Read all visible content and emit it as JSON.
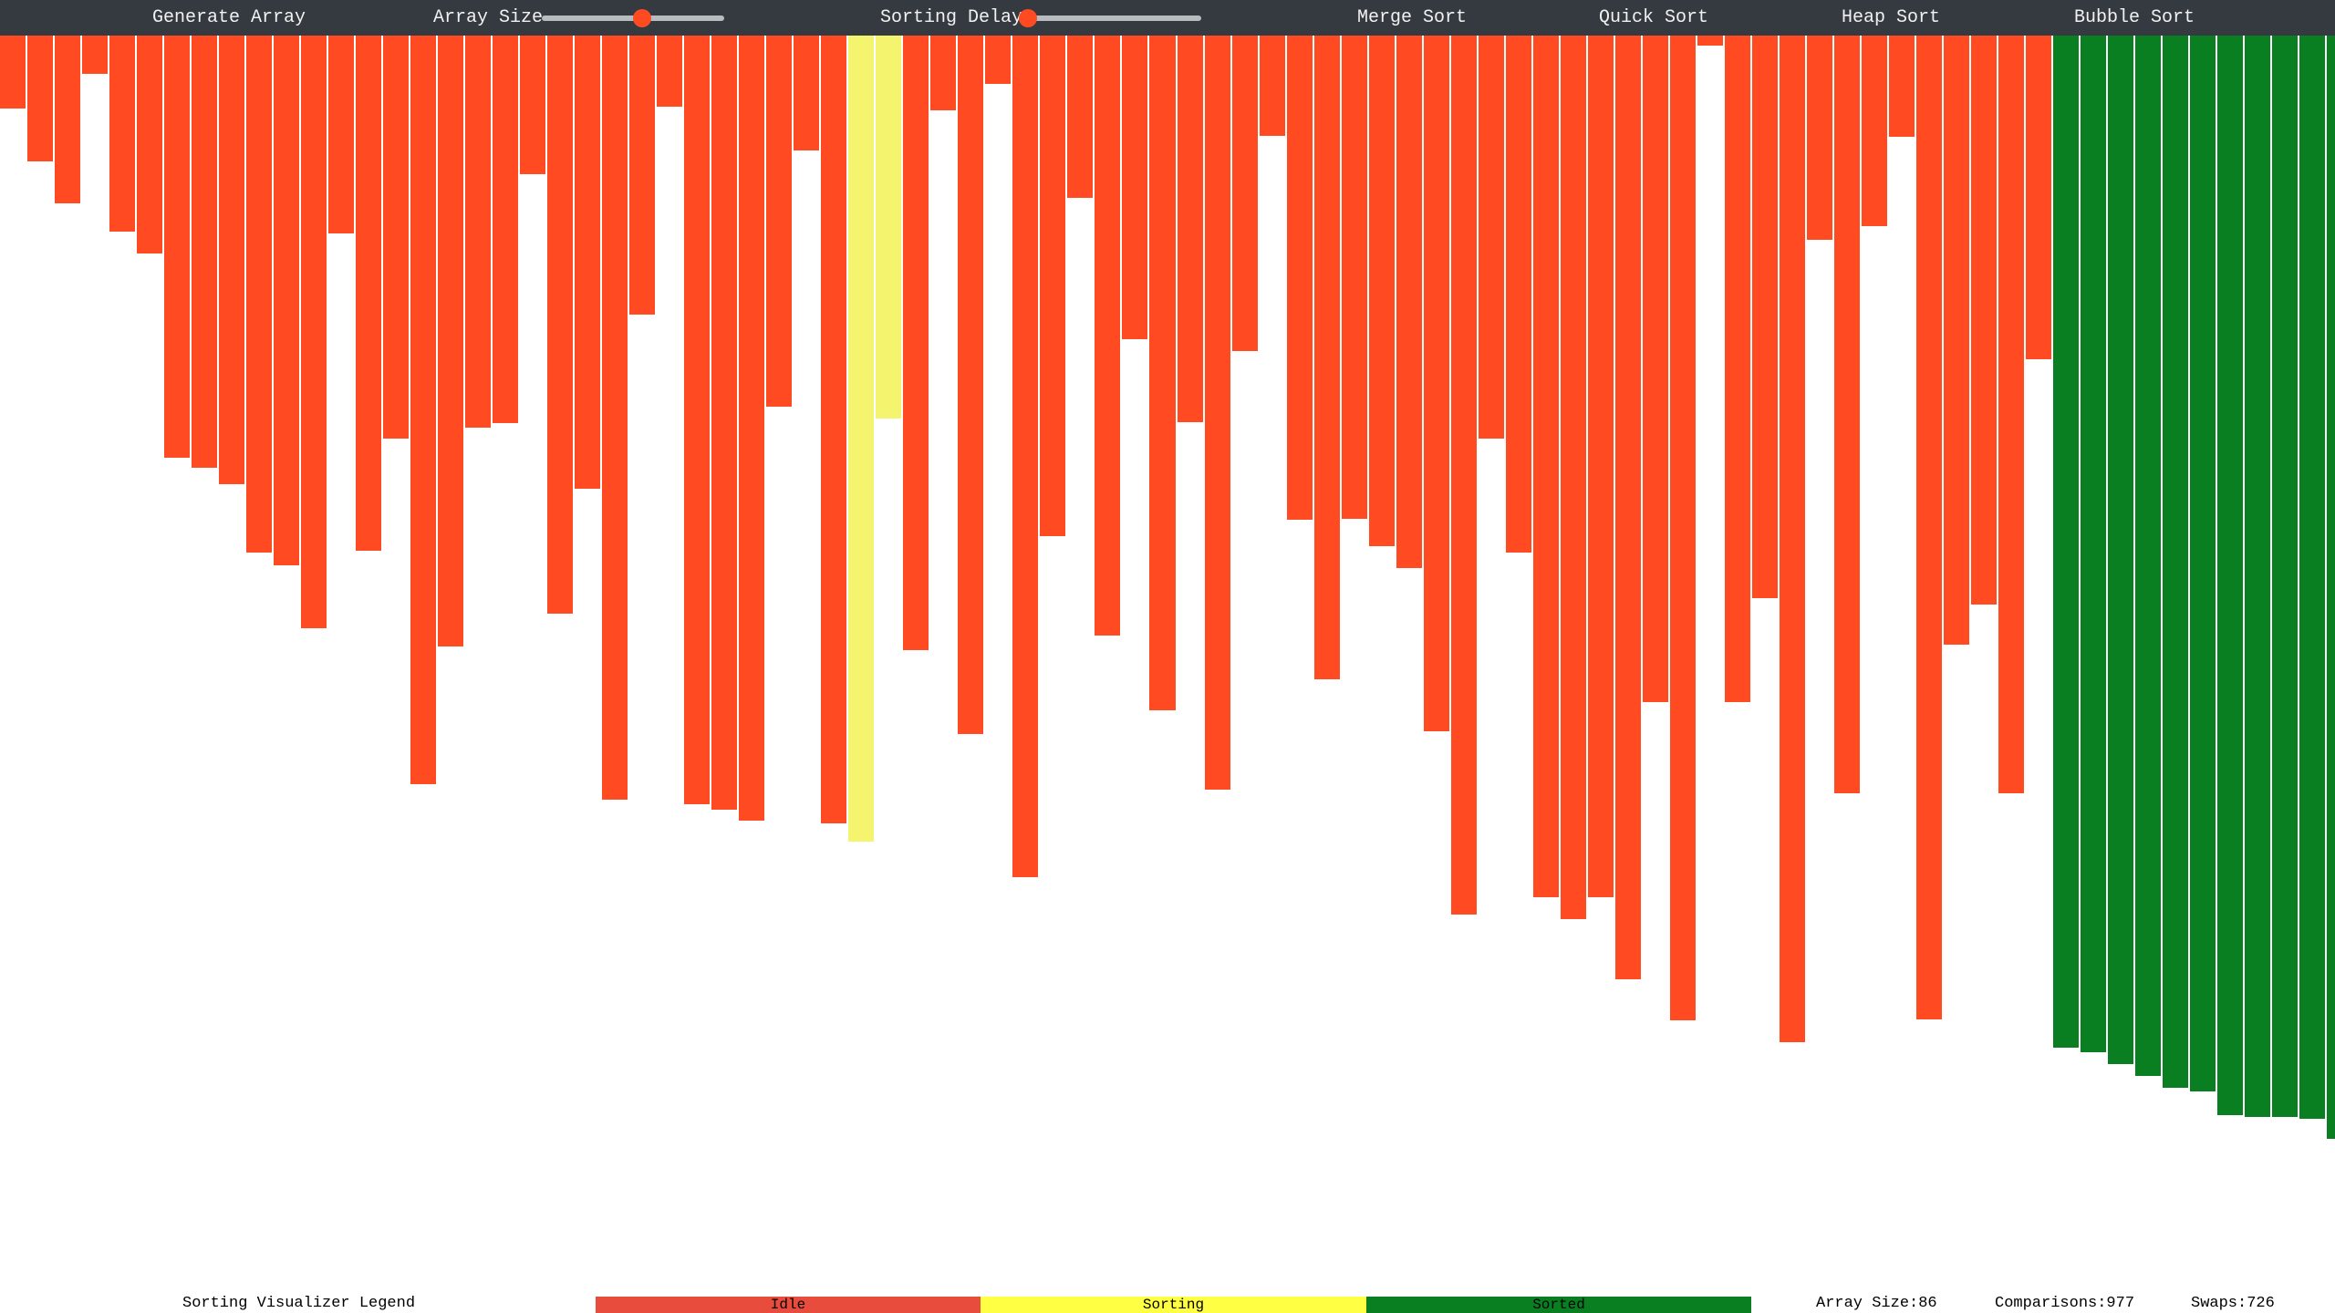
{
  "navbar": {
    "generate_label": "Generate Array",
    "array_size_label": "Array Size",
    "sorting_delay_label": "Sorting Delay",
    "merge_sort_label": "Merge Sort",
    "quick_sort_label": "Quick Sort",
    "heap_sort_label": "Heap Sort",
    "bubble_sort_label": "Bubble Sort",
    "array_size_slider_fraction": 0.55,
    "sorting_delay_slider_fraction": 0.0
  },
  "colors": {
    "navbar": "#343a40",
    "idle": "#ff4a22",
    "sorting": "#f4f46e",
    "sorted": "#0a7f22",
    "legend_idle": "#e74c3c",
    "legend_sorting": "#ffff44",
    "legend_sorted": "#0a7f22"
  },
  "array": {
    "values": [
      80,
      138,
      184,
      42,
      215,
      239,
      463,
      474,
      492,
      567,
      581,
      650,
      217,
      565,
      442,
      821,
      670,
      430,
      425,
      152,
      634,
      497,
      838,
      306,
      78,
      843,
      849,
      861,
      407,
      126,
      864,
      884,
      420,
      674,
      82,
      766,
      53,
      923,
      549,
      178,
      658,
      333,
      740,
      424,
      827,
      346,
      110,
      531,
      706,
      530,
      560,
      584,
      763,
      964,
      442,
      567,
      945,
      969,
      945,
      1035,
      731,
      1080,
      11,
      731,
      617,
      1104,
      224,
      831,
      209,
      111,
      1079,
      668,
      624,
      831,
      355,
      1110,
      1115,
      1128,
      1141,
      1154,
      1158,
      1184,
      1186,
      1186,
      1188,
      1210
    ],
    "states": [
      "idle",
      "idle",
      "idle",
      "idle",
      "idle",
      "idle",
      "idle",
      "idle",
      "idle",
      "idle",
      "idle",
      "idle",
      "idle",
      "idle",
      "idle",
      "idle",
      "idle",
      "idle",
      "idle",
      "idle",
      "idle",
      "idle",
      "idle",
      "idle",
      "idle",
      "idle",
      "idle",
      "idle",
      "idle",
      "idle",
      "idle",
      "sorting",
      "sorting",
      "idle",
      "idle",
      "idle",
      "idle",
      "idle",
      "idle",
      "idle",
      "idle",
      "idle",
      "idle",
      "idle",
      "idle",
      "idle",
      "idle",
      "idle",
      "idle",
      "idle",
      "idle",
      "idle",
      "idle",
      "idle",
      "idle",
      "idle",
      "idle",
      "idle",
      "idle",
      "idle",
      "idle",
      "idle",
      "idle",
      "idle",
      "idle",
      "idle",
      "idle",
      "idle",
      "idle",
      "idle",
      "idle",
      "idle",
      "idle",
      "idle",
      "idle",
      "sorted",
      "sorted",
      "sorted",
      "sorted",
      "sorted",
      "sorted",
      "sorted",
      "sorted",
      "sorted",
      "sorted",
      "sorted"
    ]
  },
  "legend": {
    "title": "Sorting Visualizer Legend",
    "idle_label": "Idle",
    "sorting_label": "Sorting",
    "sorted_label": "Sorted"
  },
  "stats": {
    "array_size_text": "Array Size:86",
    "comparisons_text": "Comparisons:977",
    "swaps_text": "Swaps:726"
  }
}
